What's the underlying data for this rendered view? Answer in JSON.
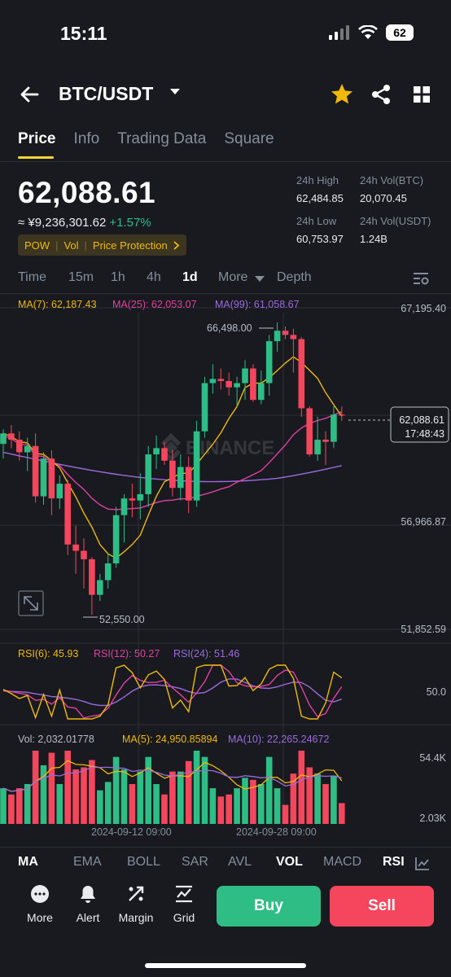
{
  "status": {
    "time": "15:11",
    "battery": "62"
  },
  "header": {
    "pair": "BTC/USDT"
  },
  "tabs": [
    {
      "label": "Price",
      "active": true
    },
    {
      "label": "Info",
      "active": false
    },
    {
      "label": "Trading Data",
      "active": false
    },
    {
      "label": "Square",
      "active": false
    }
  ],
  "ticker": {
    "last_price": "62,088.61",
    "fiat_price": "≈ ¥9,236,301.62",
    "change": "+1.57%",
    "tags": [
      "POW",
      "Vol",
      "Price Protection"
    ],
    "high_label": "24h High",
    "high_value": "62,484.85",
    "vol_btc_label": "24h Vol(BTC)",
    "vol_btc_value": "20,070.45",
    "low_label": "24h Low",
    "low_value": "60,753.97",
    "vol_usdt_label": "24h Vol(USDT)",
    "vol_usdt_value": "1.24B"
  },
  "intervals": [
    "Time",
    "15m",
    "1h",
    "4h",
    "1d",
    "More",
    "Depth"
  ],
  "active_interval": "1d",
  "chart": {
    "ma7_label": "MA(7): 62,187.43",
    "ma25_label": "MA(25): 62,053.07",
    "ma99_label": "MA(99): 61,058.67",
    "axis_top": "67,195.40",
    "axis_mid": "56,966.87",
    "axis_low": "51,852.59",
    "high_marker": "66,498.00",
    "low_marker": "52,550.00",
    "price_tag": "62,088.61",
    "countdown": "17:48:43",
    "watermark": "BINANCE",
    "rsi6_label": "RSI(6): 45.93",
    "rsi12_label": "RSI(12): 50.27",
    "rsi24_label": "RSI(24): 51.46",
    "rsi_axis": "50.0",
    "vol_label": "Vol: 2,032.01778",
    "vol_ma5_label": "MA(5): 24,950.85894",
    "vol_ma10_label": "MA(10): 22,265.24672",
    "vol_axis_top": "54.4K",
    "vol_axis_bottom": "2.03K",
    "date1": "2024-09-12 09:00",
    "date2": "2024-09-28 09:00"
  },
  "colors": {
    "up": "#2ebd85",
    "down": "#f6465d",
    "ma7": "#f0b90b",
    "ma25": "#e040a0",
    "ma99": "#9c6ade",
    "accent": "#fcd535"
  },
  "indicators": [
    "MA",
    "EMA",
    "BOLL",
    "SAR",
    "AVL",
    "VOL",
    "MACD",
    "RSI"
  ],
  "active_indicators": [
    "MA",
    "VOL",
    "RSI"
  ],
  "nav": [
    "More",
    "Alert",
    "Margin",
    "Grid"
  ],
  "buy_label": "Buy",
  "sell_label": "Sell",
  "chart_data": {
    "type": "candlestick",
    "interval": "1d",
    "price_axis_ticks": [
      67195.4,
      56966.87,
      51852.59
    ],
    "last_price": 62088.61,
    "highest_marked": 66498.0,
    "lowest_marked": 52550.0,
    "ohlc": [
      [
        60700,
        61400,
        60000,
        61200
      ],
      [
        61200,
        61600,
        60500,
        60900
      ],
      [
        60900,
        61300,
        59900,
        60300
      ],
      [
        60300,
        61000,
        59400,
        60600
      ],
      [
        60600,
        61200,
        57900,
        58200
      ],
      [
        58200,
        60300,
        57800,
        60000
      ],
      [
        60000,
        60400,
        57300,
        58100
      ],
      [
        58100,
        59200,
        57600,
        58800
      ],
      [
        58800,
        59000,
        55400,
        55900
      ],
      [
        55900,
        56800,
        54500,
        55600
      ],
      [
        55600,
        56200,
        53800,
        55200
      ],
      [
        55200,
        55300,
        52550,
        53500
      ],
      [
        53500,
        54500,
        53200,
        54200
      ],
      [
        54200,
        55500,
        53800,
        55000
      ],
      [
        55000,
        57700,
        54800,
        57300
      ],
      [
        57300,
        58300,
        56000,
        58100
      ],
      [
        58100,
        58800,
        57200,
        58000
      ],
      [
        58000,
        59300,
        57100,
        58300
      ],
      [
        58300,
        60600,
        57700,
        60200
      ],
      [
        60200,
        61100,
        59500,
        60500
      ],
      [
        60500,
        60800,
        59700,
        59900
      ],
      [
        59900,
        60400,
        58200,
        58600
      ],
      [
        58600,
        60200,
        58000,
        59600
      ],
      [
        59600,
        60100,
        57400,
        58000
      ],
      [
        58000,
        61800,
        57700,
        61300
      ],
      [
        61300,
        63900,
        61000,
        63600
      ],
      [
        63600,
        64500,
        63100,
        63800
      ],
      [
        63800,
        64300,
        63300,
        63700
      ],
      [
        63700,
        64100,
        63000,
        63400
      ],
      [
        63400,
        63900,
        62500,
        63600
      ],
      [
        63600,
        64700,
        62800,
        64300
      ],
      [
        64300,
        64500,
        62700,
        62800
      ],
      [
        62800,
        64200,
        62600,
        63600
      ],
      [
        63600,
        65900,
        63000,
        65600
      ],
      [
        65600,
        66498,
        65100,
        66100
      ],
      [
        66100,
        66300,
        65700,
        65900
      ],
      [
        65900,
        66200,
        64100,
        65700
      ],
      [
        65700,
        65800,
        62000,
        62400
      ],
      [
        62400,
        62500,
        60100,
        60200
      ],
      [
        60200,
        62000,
        59900,
        60900
      ],
      [
        60900,
        61300,
        59700,
        60800
      ],
      [
        60800,
        62500,
        60500,
        62100
      ],
      [
        62100,
        62485,
        61800,
        62089
      ]
    ],
    "rsi": {
      "rsi6": 45.93,
      "rsi12": 50.27,
      "rsi24": 51.46
    },
    "volume_ticks": [
      "54.4K",
      "2.03K"
    ],
    "volume_ma": {
      "ma5": 24950.85894,
      "ma10": 22265.24672
    },
    "x_labels": [
      "2024-09-12 09:00",
      "2024-09-28 09:00"
    ]
  }
}
